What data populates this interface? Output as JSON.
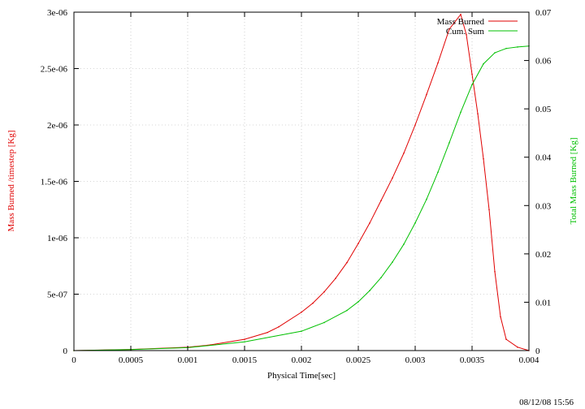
{
  "chart_data": {
    "type": "line",
    "xlabel": "Physical Time[sec]",
    "ylabel_left": "Mass Burned /timestep [Kg]",
    "ylabel_right": "Total Mass Burned [Kg]",
    "timestamp": "08/12/08 15:56",
    "grid": true,
    "legend_placement": "top-right",
    "x_range": [
      0,
      0.004
    ],
    "y_left_range": [
      0,
      3e-06
    ],
    "y_right_range": [
      0,
      0.07
    ],
    "x_ticks": [
      "0",
      "0.0005",
      "0.001",
      "0.0015",
      "0.002",
      "0.0025",
      "0.003",
      "0.0035",
      "0.004"
    ],
    "x_tick_values": [
      0,
      0.0005,
      0.001,
      0.0015,
      0.002,
      0.0025,
      0.003,
      0.0035,
      0.004
    ],
    "y_left_ticks": [
      "0",
      "5e-07",
      "1e-06",
      "1.5e-06",
      "2e-06",
      "2.5e-06",
      "3e-06"
    ],
    "y_left_tick_values": [
      0,
      5e-07,
      1e-06,
      1.5e-06,
      2e-06,
      2.5e-06,
      3e-06
    ],
    "y_right_ticks": [
      "0",
      "0.01",
      "0.02",
      "0.03",
      "0.04",
      "0.05",
      "0.06",
      "0.07"
    ],
    "y_right_tick_values": [
      0,
      0.01,
      0.02,
      0.03,
      0.04,
      0.05,
      0.06,
      0.07
    ],
    "series": [
      {
        "name": "Mass Burned",
        "axis": "left",
        "color": "#e00000",
        "x": [
          0,
          0.0005,
          0.001,
          0.0012,
          0.0015,
          0.0017,
          0.0018,
          0.002,
          0.0021,
          0.0022,
          0.0023,
          0.0024,
          0.0025,
          0.0026,
          0.0027,
          0.0028,
          0.0029,
          0.003,
          0.0031,
          0.0032,
          0.0033,
          0.0034,
          0.00345,
          0.0035,
          0.00355,
          0.0036,
          0.00365,
          0.0037,
          0.00375,
          0.0038,
          0.0039,
          0.004
        ],
        "values": [
          0,
          1e-08,
          3e-08,
          5e-08,
          1e-07,
          1.6e-07,
          2.1e-07,
          3.4e-07,
          4.2e-07,
          5.2e-07,
          6.4e-07,
          7.8e-07,
          9.5e-07,
          1.13e-06,
          1.33e-06,
          1.53e-06,
          1.75e-06,
          2e-06,
          2.27e-06,
          2.55e-06,
          2.85e-06,
          2.98e-06,
          2.8e-06,
          2.45e-06,
          2.1e-06,
          1.7e-06,
          1.25e-06,
          7e-07,
          3e-07,
          1e-07,
          3e-08,
          0
        ]
      },
      {
        "name": "Cum. Sum",
        "axis": "right",
        "color": "#00c000",
        "x": [
          0,
          0.0005,
          0.001,
          0.0015,
          0.002,
          0.0022,
          0.0024,
          0.0025,
          0.0026,
          0.0027,
          0.0028,
          0.0029,
          0.003,
          0.0031,
          0.0032,
          0.0033,
          0.0034,
          0.0035,
          0.0036,
          0.0037,
          0.0038,
          0.0039,
          0.004
        ],
        "values": [
          0,
          0.0002,
          0.0006,
          0.0018,
          0.004,
          0.0058,
          0.0083,
          0.0101,
          0.0124,
          0.0151,
          0.0183,
          0.022,
          0.0264,
          0.0313,
          0.0369,
          0.043,
          0.0493,
          0.055,
          0.0593,
          0.0616,
          0.0625,
          0.0628,
          0.063
        ]
      }
    ]
  }
}
